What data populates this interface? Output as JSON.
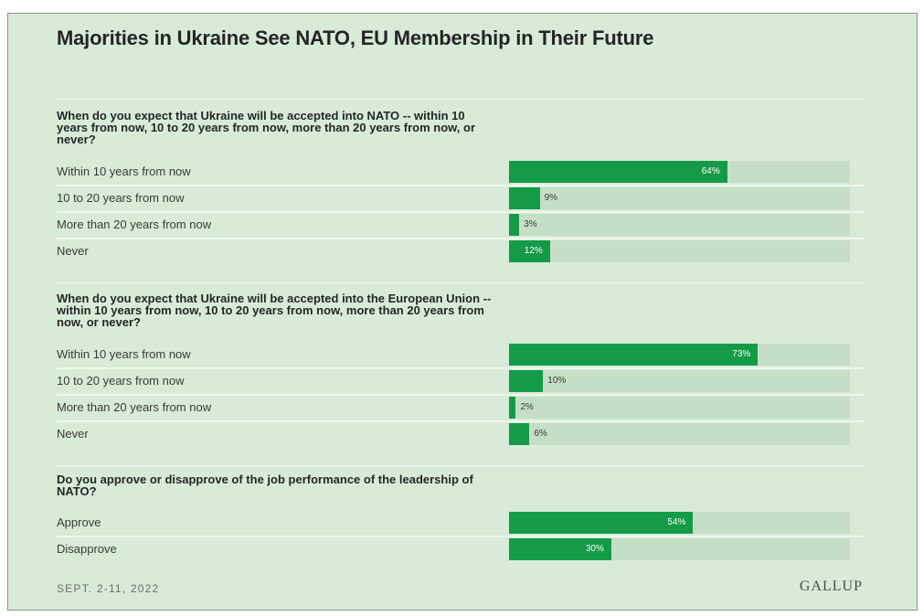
{
  "chart_data": {
    "type": "bar",
    "orientation": "horizontal",
    "title": "Majorities in Ukraine See NATO, EU Membership in Their Future",
    "unit": "%",
    "xlim": [
      0,
      100
    ],
    "grid": false,
    "legend": "none",
    "bar_color": "#159a48",
    "track_color": "#c5dfc6",
    "groups": [
      {
        "question": "When do you expect that Ukraine will be accepted into NATO -- within 10 years from now, 10 to 20 years from now, more than 20 years from now, or never?",
        "categories": [
          "Within 10 years from now",
          "10 to 20 years from now",
          "More than 20 years from now",
          "Never"
        ],
        "values": [
          64,
          9,
          3,
          12
        ],
        "value_labels": [
          "64%",
          "9%",
          "3%",
          "12%"
        ]
      },
      {
        "question": "When do you expect that Ukraine will be accepted into the European Union -- within 10 years from now, 10 to 20 years from now, more than 20 years from now, or never?",
        "categories": [
          "Within 10 years from now",
          "10 to 20 years from now",
          "More than 20 years from now",
          "Never"
        ],
        "values": [
          73,
          10,
          2,
          6
        ],
        "value_labels": [
          "73%",
          "10%",
          "2%",
          "6%"
        ]
      },
      {
        "question": "Do you approve or disapprove of the job performance of the leadership of NATO?",
        "categories": [
          "Approve",
          "Disapprove"
        ],
        "values": [
          54,
          30
        ],
        "value_labels": [
          "54%",
          "30%"
        ]
      }
    ]
  },
  "footer": {
    "date": "SEPT. 2-11, 2022",
    "brand": "GALLUP"
  }
}
